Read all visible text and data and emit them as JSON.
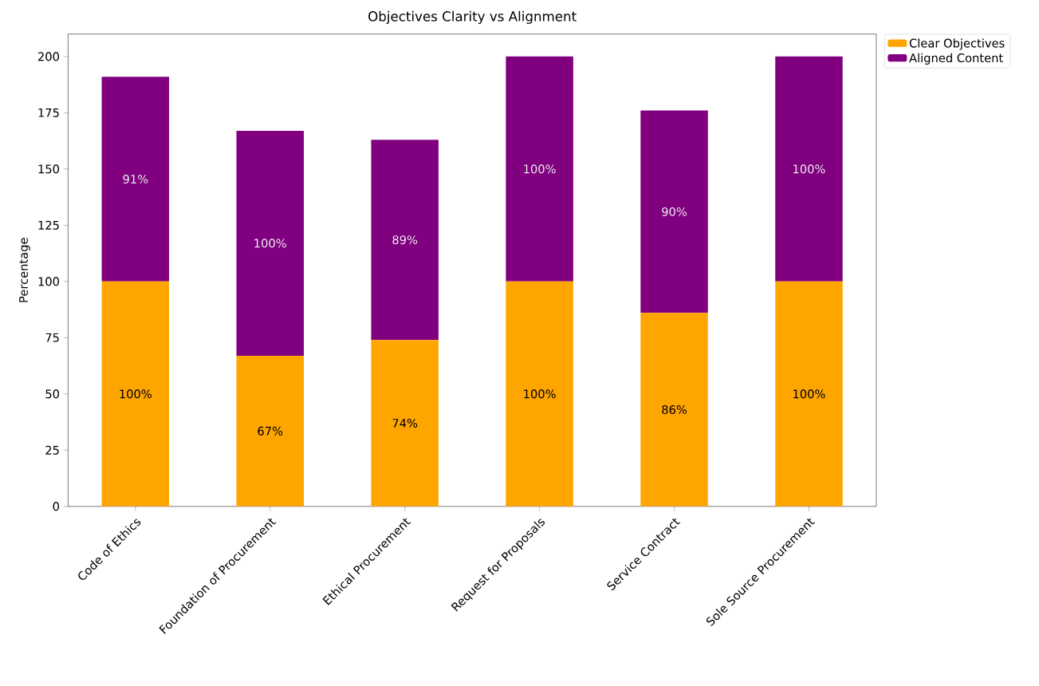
{
  "chart_data": {
    "type": "bar",
    "title": "Objectives Clarity vs Alignment",
    "ylabel": "Percentage",
    "categories": [
      "Code of Ethics",
      "Foundation of Procurement",
      "Ethical Procurement",
      "Request for Proposals",
      "Service Contract",
      "Sole Source Procurement"
    ],
    "series": [
      {
        "name": "Clear Objectives",
        "color": "#ffa500",
        "values": [
          100,
          67,
          74,
          100,
          86,
          100
        ],
        "value_labels": [
          "100%",
          "67%",
          "74%",
          "100%",
          "86%",
          "100%"
        ]
      },
      {
        "name": "Aligned Content",
        "color": "#800080",
        "values": [
          91,
          100,
          89,
          100,
          90,
          100
        ],
        "value_labels": [
          "91%",
          "100%",
          "89%",
          "100%",
          "90%",
          "100%"
        ]
      }
    ],
    "stacked": true,
    "ylim": [
      0,
      210
    ],
    "yticks": [
      0,
      25,
      50,
      75,
      100,
      125,
      150,
      175,
      200
    ],
    "legend": "top right"
  }
}
